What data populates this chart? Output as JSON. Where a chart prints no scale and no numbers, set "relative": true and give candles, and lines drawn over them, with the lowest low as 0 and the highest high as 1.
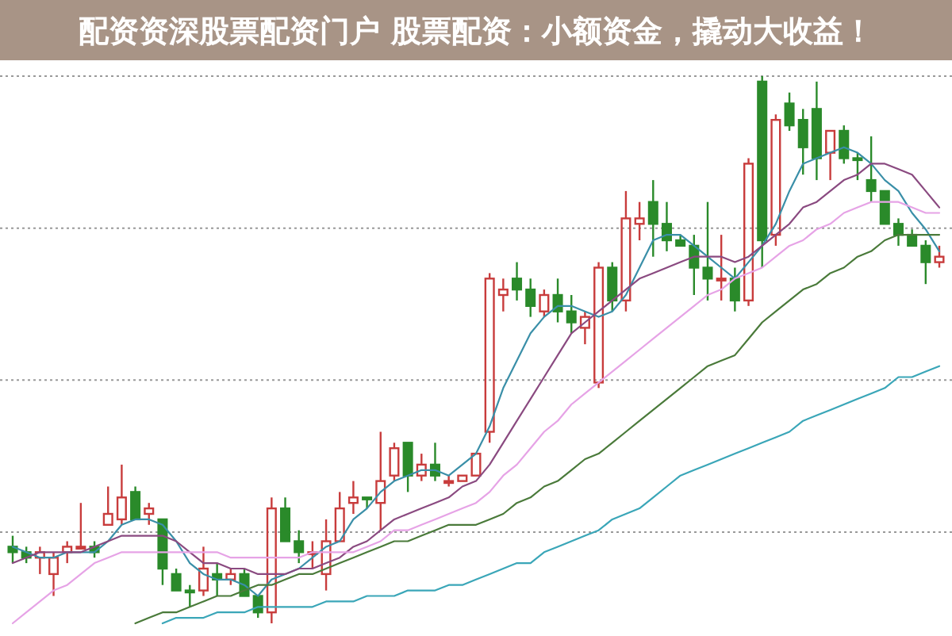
{
  "chart_data": {
    "type": "candlestick",
    "title": "配资资深股票配资门户 股票配资：小额资金，撬动大收益！",
    "relative": true,
    "grid": "y",
    "categories": [
      null,
      null,
      null,
      null,
      null,
      null,
      null,
      null,
      null,
      null,
      null,
      null,
      null,
      null,
      null,
      null,
      null,
      null,
      null,
      null,
      null,
      null,
      null,
      null,
      null,
      null,
      null,
      null,
      null,
      null,
      null,
      null,
      null,
      null,
      null,
      null,
      null,
      null,
      null,
      null,
      null,
      null,
      null,
      null,
      null,
      null,
      null,
      null,
      null,
      null,
      null,
      null,
      null,
      null,
      null,
      null,
      null,
      null,
      null,
      null,
      null,
      null,
      null,
      null,
      null,
      null,
      null,
      null,
      null
    ],
    "ohlc": [
      [
        0.14,
        0.16,
        0.11,
        0.13
      ],
      [
        0.13,
        0.14,
        0.11,
        0.12
      ],
      [
        0.12,
        0.14,
        0.09,
        0.13
      ],
      [
        0.09,
        0.13,
        0.05,
        0.12
      ],
      [
        0.13,
        0.15,
        0.11,
        0.14
      ],
      [
        0.14,
        0.22,
        0.14,
        0.14
      ],
      [
        0.14,
        0.15,
        0.12,
        0.13
      ],
      [
        0.18,
        0.25,
        0.18,
        0.2
      ],
      [
        0.19,
        0.29,
        0.18,
        0.23
      ],
      [
        0.24,
        0.25,
        0.19,
        0.19
      ],
      [
        0.2,
        0.22,
        0.18,
        0.21
      ],
      [
        0.19,
        0.19,
        0.07,
        0.1
      ],
      [
        0.09,
        0.1,
        0.06,
        0.06
      ],
      [
        0.06,
        0.07,
        0.03,
        0.06
      ],
      [
        0.06,
        0.14,
        0.05,
        0.1
      ],
      [
        0.09,
        0.11,
        0.05,
        0.08
      ],
      [
        0.08,
        0.1,
        0.07,
        0.09
      ],
      [
        0.09,
        0.1,
        0.05,
        0.05
      ],
      [
        0.05,
        0.05,
        0.01,
        0.02
      ],
      [
        0.02,
        0.23,
        0.0,
        0.21
      ],
      [
        0.21,
        0.23,
        0.15,
        0.15
      ],
      [
        0.15,
        0.17,
        0.11,
        0.13
      ],
      [
        0.13,
        0.15,
        0.1,
        0.13
      ],
      [
        0.09,
        0.19,
        0.06,
        0.15
      ],
      [
        0.15,
        0.24,
        0.15,
        0.21
      ],
      [
        0.22,
        0.26,
        0.2,
        0.23
      ],
      [
        0.23,
        0.23,
        0.21,
        0.23
      ],
      [
        0.22,
        0.35,
        0.17,
        0.26
      ],
      [
        0.27,
        0.33,
        0.26,
        0.32
      ],
      [
        0.33,
        0.33,
        0.24,
        0.27
      ],
      [
        0.27,
        0.31,
        0.26,
        0.29
      ],
      [
        0.29,
        0.33,
        0.26,
        0.27
      ],
      [
        0.26,
        0.27,
        0.25,
        0.26
      ],
      [
        0.26,
        0.27,
        0.26,
        0.27
      ],
      [
        0.27,
        0.31,
        0.27,
        0.31
      ],
      [
        0.35,
        0.64,
        0.33,
        0.63
      ],
      [
        0.6,
        0.63,
        0.57,
        0.61
      ],
      [
        0.63,
        0.66,
        0.59,
        0.61
      ],
      [
        0.61,
        0.63,
        0.56,
        0.58
      ],
      [
        0.57,
        0.61,
        0.56,
        0.6
      ],
      [
        0.6,
        0.63,
        0.55,
        0.57
      ],
      [
        0.57,
        0.6,
        0.53,
        0.55
      ],
      [
        0.54,
        0.57,
        0.51,
        0.56
      ],
      [
        0.44,
        0.66,
        0.43,
        0.65
      ],
      [
        0.65,
        0.66,
        0.57,
        0.59
      ],
      [
        0.59,
        0.79,
        0.57,
        0.74
      ],
      [
        0.73,
        0.77,
        0.7,
        0.74
      ],
      [
        0.77,
        0.81,
        0.67,
        0.73
      ],
      [
        0.73,
        0.77,
        0.68,
        0.7
      ],
      [
        0.7,
        0.71,
        0.69,
        0.69
      ],
      [
        0.69,
        0.71,
        0.6,
        0.65
      ],
      [
        0.65,
        0.77,
        0.59,
        0.63
      ],
      [
        0.63,
        0.71,
        0.59,
        0.63
      ],
      [
        0.63,
        0.65,
        0.57,
        0.59
      ],
      [
        0.59,
        0.85,
        0.58,
        0.84
      ],
      [
        0.99,
        1.0,
        0.65,
        0.7
      ],
      [
        0.71,
        0.93,
        0.69,
        0.92
      ],
      [
        0.95,
        0.97,
        0.9,
        0.91
      ],
      [
        0.92,
        0.94,
        0.82,
        0.87
      ],
      [
        0.94,
        0.99,
        0.81,
        0.85
      ],
      [
        0.86,
        0.9,
        0.81,
        0.9
      ],
      [
        0.9,
        0.91,
        0.84,
        0.85
      ],
      [
        0.85,
        0.86,
        0.81,
        0.85
      ],
      [
        0.81,
        0.89,
        0.77,
        0.79
      ],
      [
        0.79,
        0.79,
        0.73,
        0.73
      ],
      [
        0.73,
        0.74,
        0.69,
        0.71
      ],
      [
        0.71,
        0.72,
        0.69,
        0.69
      ],
      [
        0.69,
        0.7,
        0.62,
        0.66
      ],
      [
        0.66,
        0.69,
        0.65,
        0.67
      ]
    ],
    "colors": [
      "#2a8a2a",
      "#2a8a2a",
      "#c83c3c",
      "#c83c3c",
      "#c83c3c",
      "#c83c3c",
      "#2a8a2a",
      "#c83c3c",
      "#c83c3c",
      "#2a8a2a",
      "#c83c3c",
      "#2a8a2a",
      "#2a8a2a",
      "#2a8a2a",
      "#c83c3c",
      "#2a8a2a",
      "#c83c3c",
      "#2a8a2a",
      "#2a8a2a",
      "#c83c3c",
      "#2a8a2a",
      "#2a8a2a",
      "#c83c3c",
      "#c83c3c",
      "#c83c3c",
      "#c83c3c",
      "#2a8a2a",
      "#c83c3c",
      "#c83c3c",
      "#2a8a2a",
      "#c83c3c",
      "#2a8a2a",
      "#c83c3c",
      "#c83c3c",
      "#c83c3c",
      "#c83c3c",
      "#c83c3c",
      "#2a8a2a",
      "#2a8a2a",
      "#c83c3c",
      "#2a8a2a",
      "#2a8a2a",
      "#c83c3c",
      "#c83c3c",
      "#2a8a2a",
      "#c83c3c",
      "#c83c3c",
      "#2a8a2a",
      "#2a8a2a",
      "#2a8a2a",
      "#2a8a2a",
      "#2a8a2a",
      "#c83c3c",
      "#2a8a2a",
      "#c83c3c",
      "#2a8a2a",
      "#c83c3c",
      "#2a8a2a",
      "#2a8a2a",
      "#2a8a2a",
      "#c83c3c",
      "#2a8a2a",
      "#2a8a2a",
      "#2a8a2a",
      "#2a8a2a",
      "#2a8a2a",
      "#2a8a2a",
      "#2a8a2a",
      "#c83c3c"
    ],
    "series": [
      {
        "type": "line",
        "color": "#3a8fa8",
        "values": [
          0.14,
          0.13,
          0.12,
          0.12,
          0.13,
          0.13,
          0.13,
          0.15,
          0.18,
          0.19,
          0.19,
          0.18,
          0.15,
          0.11,
          0.09,
          0.08,
          0.08,
          0.07,
          0.05,
          0.08,
          0.09,
          0.1,
          0.12,
          0.14,
          0.15,
          0.19,
          0.21,
          0.24,
          0.26,
          0.27,
          0.28,
          0.28,
          0.27,
          0.29,
          0.31,
          0.36,
          0.43,
          0.48,
          0.53,
          0.56,
          0.58,
          0.58,
          0.57,
          0.56,
          0.57,
          0.6,
          0.65,
          0.7,
          0.71,
          0.71,
          0.69,
          0.67,
          0.65,
          0.63,
          0.66,
          0.69,
          0.73,
          0.79,
          0.84,
          0.85,
          0.86,
          0.87,
          0.86,
          0.84,
          0.81,
          0.79,
          0.75,
          0.72,
          0.68
        ]
      },
      {
        "type": "line",
        "color": "#8a4a80",
        "values": [
          0.11,
          0.12,
          0.13,
          0.13,
          0.13,
          0.13,
          0.14,
          0.15,
          0.16,
          0.16,
          0.16,
          0.16,
          0.15,
          0.13,
          0.11,
          0.11,
          0.1,
          0.1,
          0.09,
          0.09,
          0.09,
          0.1,
          0.1,
          0.11,
          0.12,
          0.14,
          0.15,
          0.17,
          0.19,
          0.2,
          0.21,
          0.22,
          0.23,
          0.25,
          0.26,
          0.29,
          0.33,
          0.37,
          0.41,
          0.45,
          0.49,
          0.53,
          0.55,
          0.57,
          0.59,
          0.61,
          0.63,
          0.64,
          0.65,
          0.66,
          0.67,
          0.67,
          0.67,
          0.66,
          0.67,
          0.69,
          0.71,
          0.73,
          0.76,
          0.77,
          0.79,
          0.81,
          0.82,
          0.84,
          0.84,
          0.83,
          0.82,
          0.79,
          0.76
        ]
      },
      {
        "type": "line",
        "color": "#e6a3e6",
        "values": [
          0.0,
          0.02,
          0.04,
          0.06,
          0.07,
          0.09,
          0.11,
          0.12,
          0.13,
          0.13,
          0.13,
          0.13,
          0.13,
          0.13,
          0.13,
          0.13,
          0.12,
          0.12,
          0.12,
          0.12,
          0.12,
          0.12,
          0.13,
          0.13,
          0.13,
          0.13,
          0.14,
          0.15,
          0.17,
          0.17,
          0.18,
          0.19,
          0.2,
          0.21,
          0.22,
          0.24,
          0.27,
          0.29,
          0.32,
          0.35,
          0.37,
          0.4,
          0.42,
          0.44,
          0.46,
          0.48,
          0.5,
          0.52,
          0.54,
          0.56,
          0.58,
          0.6,
          0.61,
          0.63,
          0.64,
          0.65,
          0.67,
          0.69,
          0.7,
          0.72,
          0.73,
          0.75,
          0.76,
          0.77,
          0.77,
          0.77,
          0.76,
          0.75,
          0.75
        ]
      },
      {
        "type": "line",
        "color": "#4a7a3a",
        "values": [
          null,
          null,
          null,
          null,
          null,
          null,
          null,
          null,
          null,
          0.0,
          0.01,
          0.02,
          0.02,
          0.03,
          0.04,
          0.05,
          0.05,
          0.06,
          0.07,
          0.07,
          0.08,
          0.09,
          0.09,
          0.1,
          0.11,
          0.12,
          0.13,
          0.14,
          0.15,
          0.15,
          0.16,
          0.17,
          0.18,
          0.18,
          0.18,
          0.19,
          0.2,
          0.22,
          0.23,
          0.25,
          0.26,
          0.28,
          0.3,
          0.31,
          0.33,
          0.35,
          0.37,
          0.39,
          0.41,
          0.43,
          0.45,
          0.47,
          0.48,
          0.49,
          0.52,
          0.55,
          0.57,
          0.59,
          0.61,
          0.62,
          0.64,
          0.65,
          0.67,
          0.68,
          0.7,
          0.71,
          0.71,
          0.71,
          0.71
        ]
      },
      {
        "type": "line",
        "color": "#3aa6b8",
        "values": [
          null,
          null,
          null,
          null,
          null,
          null,
          null,
          null,
          null,
          null,
          null,
          0.0,
          0.01,
          0.01,
          0.01,
          0.02,
          0.02,
          0.02,
          0.03,
          0.03,
          0.03,
          0.03,
          0.03,
          0.04,
          0.04,
          0.04,
          0.05,
          0.05,
          0.05,
          0.06,
          0.06,
          0.06,
          0.07,
          0.07,
          0.08,
          0.09,
          0.1,
          0.11,
          0.11,
          0.13,
          0.14,
          0.15,
          0.16,
          0.17,
          0.19,
          0.2,
          0.21,
          0.23,
          0.25,
          0.27,
          0.28,
          0.29,
          0.3,
          0.31,
          0.32,
          0.33,
          0.34,
          0.35,
          0.37,
          0.38,
          0.39,
          0.4,
          0.41,
          0.42,
          0.43,
          0.45,
          0.45,
          0.46,
          0.47
        ]
      }
    ]
  }
}
